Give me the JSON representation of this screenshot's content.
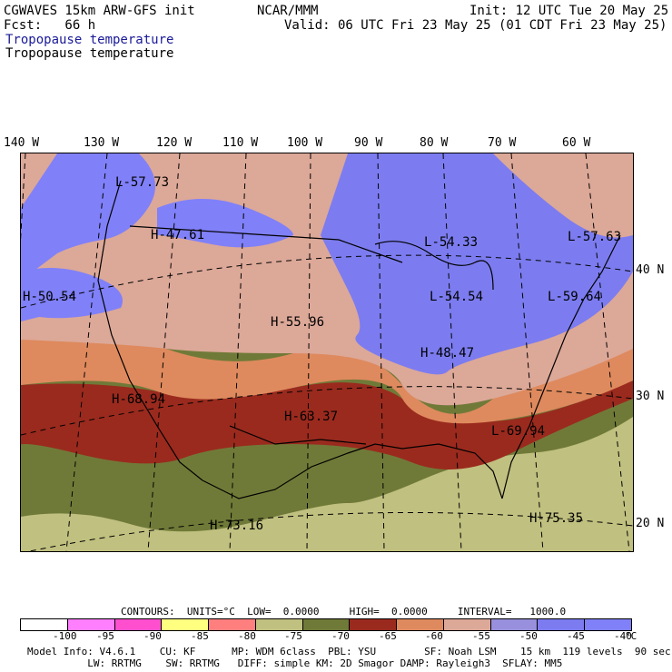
{
  "header": {
    "model": "CGWAVES 15km ARW-GFS init",
    "org": "NCAR/MMM",
    "init": "Init: 12 UTC Tue 20 May 25",
    "fcst": "Fcst:   66 h",
    "valid": "Valid: 06 UTC Fri 23 May 25 (01 CDT Fri 23 May 25)",
    "field1": "Tropopause temperature",
    "field2": "Tropopause temperature"
  },
  "lon_labels": [
    "140 W",
    "130 W",
    "120 W",
    "110 W",
    "100 W",
    "90 W",
    "80 W",
    "70 W",
    "60 W"
  ],
  "lat_labels": [
    "40 N",
    "30 N",
    "20 N"
  ],
  "colors": {
    "c1": "#ffffff",
    "c2": "#ff7fff",
    "c3": "#ff4fcf",
    "c4": "#ffff80",
    "c5": "#ff7f7f",
    "c6": "#c0c080",
    "c7": "#707a38",
    "c8": "#9a2a1e",
    "c9": "#de8a5e",
    "c10": "#dca898",
    "c11": "#9890dc",
    "c12": "#7c7cf0",
    "c13": "#8080f8"
  },
  "extrema": [
    {
      "type": "L",
      "value": "57.73"
    },
    {
      "type": "H",
      "value": "47.61"
    },
    {
      "type": "L",
      "value": "54.33"
    },
    {
      "type": "L",
      "value": "57.63"
    },
    {
      "type": "H",
      "value": "50.54"
    },
    {
      "type": "L",
      "value": "54.54"
    },
    {
      "type": "L",
      "value": "59.64"
    },
    {
      "type": "H",
      "value": "55.96"
    },
    {
      "type": "H",
      "value": "48.47"
    },
    {
      "type": "H",
      "value": "68.94"
    },
    {
      "type": "H",
      "value": "63.37"
    },
    {
      "type": "L",
      "value": "69.94"
    },
    {
      "type": "H",
      "value": "73.16"
    },
    {
      "type": "H",
      "value": "75.35"
    }
  ],
  "contour_info": "CONTOURS:  UNITS=°C  LOW=  0.0000     HIGH=  0.0000     INTERVAL=   1000.0",
  "colorbar": {
    "labels": [
      "-100",
      "-95",
      "-90",
      "-85",
      "-80",
      "-75",
      "-70",
      "-65",
      "-60",
      "-55",
      "-50",
      "-45",
      "-40",
      "°C"
    ]
  },
  "footer": {
    "line1": "Model Info: V4.6.1    CU: KF      MP: WDM 6class  PBL: YSU        SF: Noah LSM    15 km  119 levels  90 sec",
    "line2": "          LW: RRTMG    SW: RRTMG   DIFF: simple KM: 2D Smagor DAMP: Rayleigh3  SFLAY: MM5"
  }
}
